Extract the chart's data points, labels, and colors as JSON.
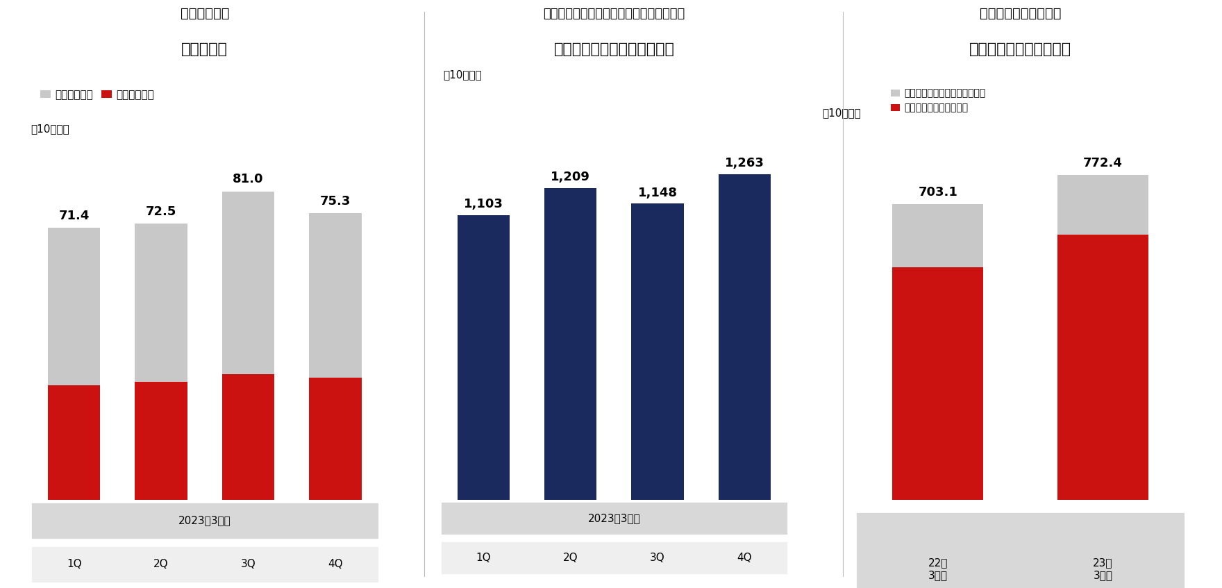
{
  "chart1": {
    "title_line1": "＜営業部門＞",
    "title_line2": "収益の内訳",
    "legend1": "フロー収入等",
    "legend2": "ストック収入",
    "unit": "（10億円）",
    "categories": [
      "1Q",
      "2Q",
      "3Q",
      "4Q"
    ],
    "group_label": "2023年3月期",
    "totals": [
      71.4,
      72.5,
      81.0,
      75.3
    ],
    "stock_values": [
      30.0,
      31.0,
      33.0,
      32.0
    ],
    "flow_values": [
      41.4,
      41.5,
      48.0,
      43.3
    ],
    "color_flow": "#c8c8c8",
    "color_stock": "#cc1111"
  },
  "chart2": {
    "title_line1": "＜インベストメント・マネジメント部門＞",
    "title_line2": "オルタナティブ運用資産残高",
    "unit": "（10億円）",
    "categories": [
      "1Q",
      "2Q",
      "3Q",
      "4Q"
    ],
    "group_label": "2023年3月期",
    "values": [
      1103,
      1209,
      1148,
      1263
    ],
    "color_bar": "#1a2a5e"
  },
  "chart3": {
    "title_line1": "＜ホールセール部門＞",
    "title_line2": "ビジネスライン別の収益",
    "legend1": "インベストメント・バンキング",
    "legend2": "グローバル・マーケッツ",
    "unit": "（10億円）",
    "categories": [
      "22年\n3月期",
      "23年\n3月期"
    ],
    "totals": [
      703.1,
      772.4
    ],
    "ib_values": [
      150.0,
      142.0
    ],
    "gm_values": [
      553.1,
      630.4
    ],
    "color_ib": "#c8c8c8",
    "color_gm": "#cc1111"
  },
  "bg_color": "#ffffff",
  "axis_bg_dark": "#d8d8d8",
  "axis_bg_light": "#efefef",
  "divider_color": "#bbbbbb"
}
